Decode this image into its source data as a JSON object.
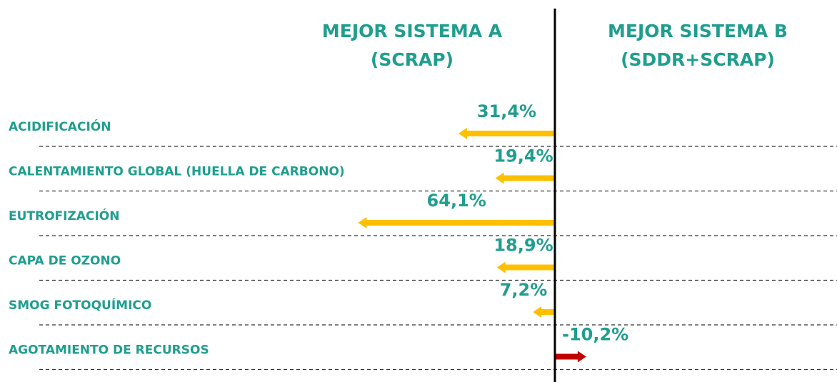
{
  "chart_data": {
    "type": "diverging-arrow",
    "left_header": [
      "MEJOR SISTEMA A",
      "(SCRAP)"
    ],
    "right_header": [
      "MEJOR SISTEMA B",
      "(SDDR+SCRAP)"
    ],
    "categories": [
      "ACIDIFICACIÓN",
      "CALENTAMIENTO GLOBAL (HUELLA DE CARBONO)",
      "EUTROFIZACIÓN",
      "CAPA DE OZONO",
      "SMOG FOTOQUÍMICO",
      "AGOTAMIENTO DE RECURSOS"
    ],
    "values": [
      31.4,
      19.4,
      64.1,
      18.9,
      7.2,
      -10.2
    ],
    "value_labels": [
      "31,4%",
      "19,4%",
      "64,1%",
      "18,9%",
      "7,2%",
      "-10,2%"
    ],
    "color": "#ffc000",
    "negative_color": "#c00000"
  }
}
